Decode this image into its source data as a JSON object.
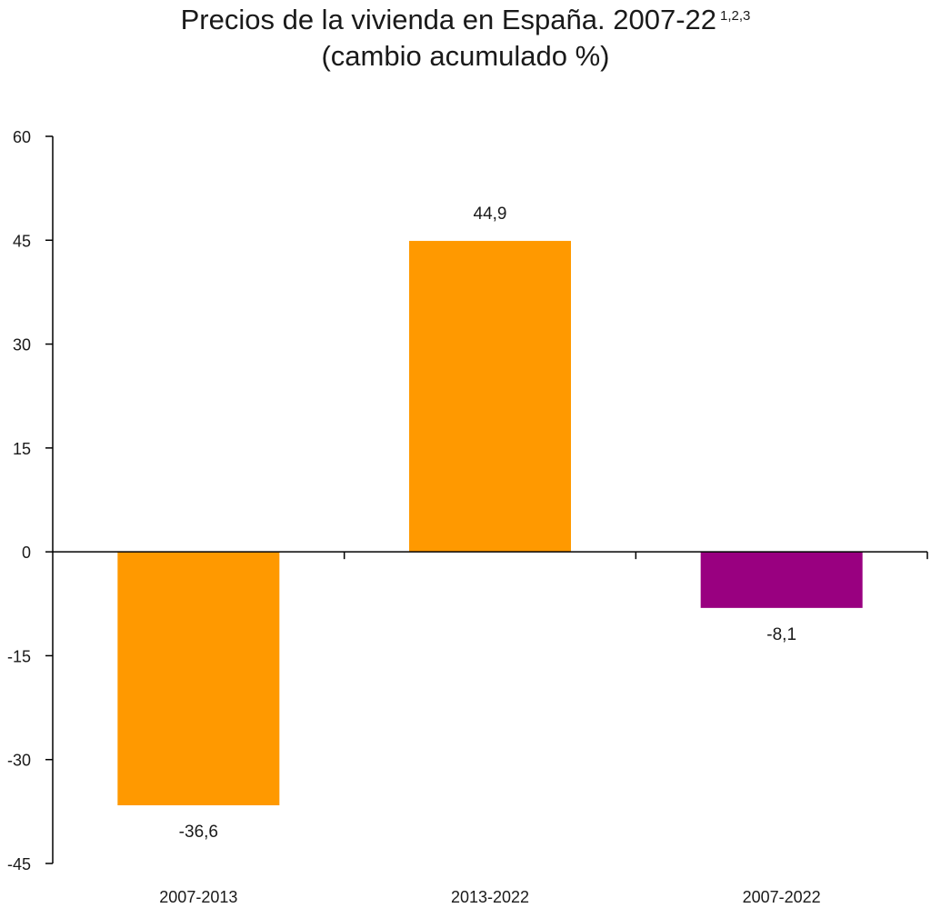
{
  "chart_data": {
    "type": "bar",
    "title": "Precios de la vivienda en España. 2007-22",
    "title_superscript": "1,2,3",
    "subtitle": "(cambio acumulado %)",
    "categories": [
      "2007-2013",
      "2013-2022",
      "2007-2022"
    ],
    "values": [
      -36.6,
      44.9,
      -8.1
    ],
    "value_labels": [
      "-36,6",
      "44,9",
      "-8,1"
    ],
    "bar_colors": [
      "#FF9900",
      "#FF9900",
      "#990080"
    ],
    "ylim": [
      -45,
      60
    ],
    "yticks": [
      60,
      45,
      30,
      15,
      0,
      -15,
      -30,
      -45
    ],
    "xlabel": "",
    "ylabel": "",
    "grid": false,
    "legend": "none"
  }
}
